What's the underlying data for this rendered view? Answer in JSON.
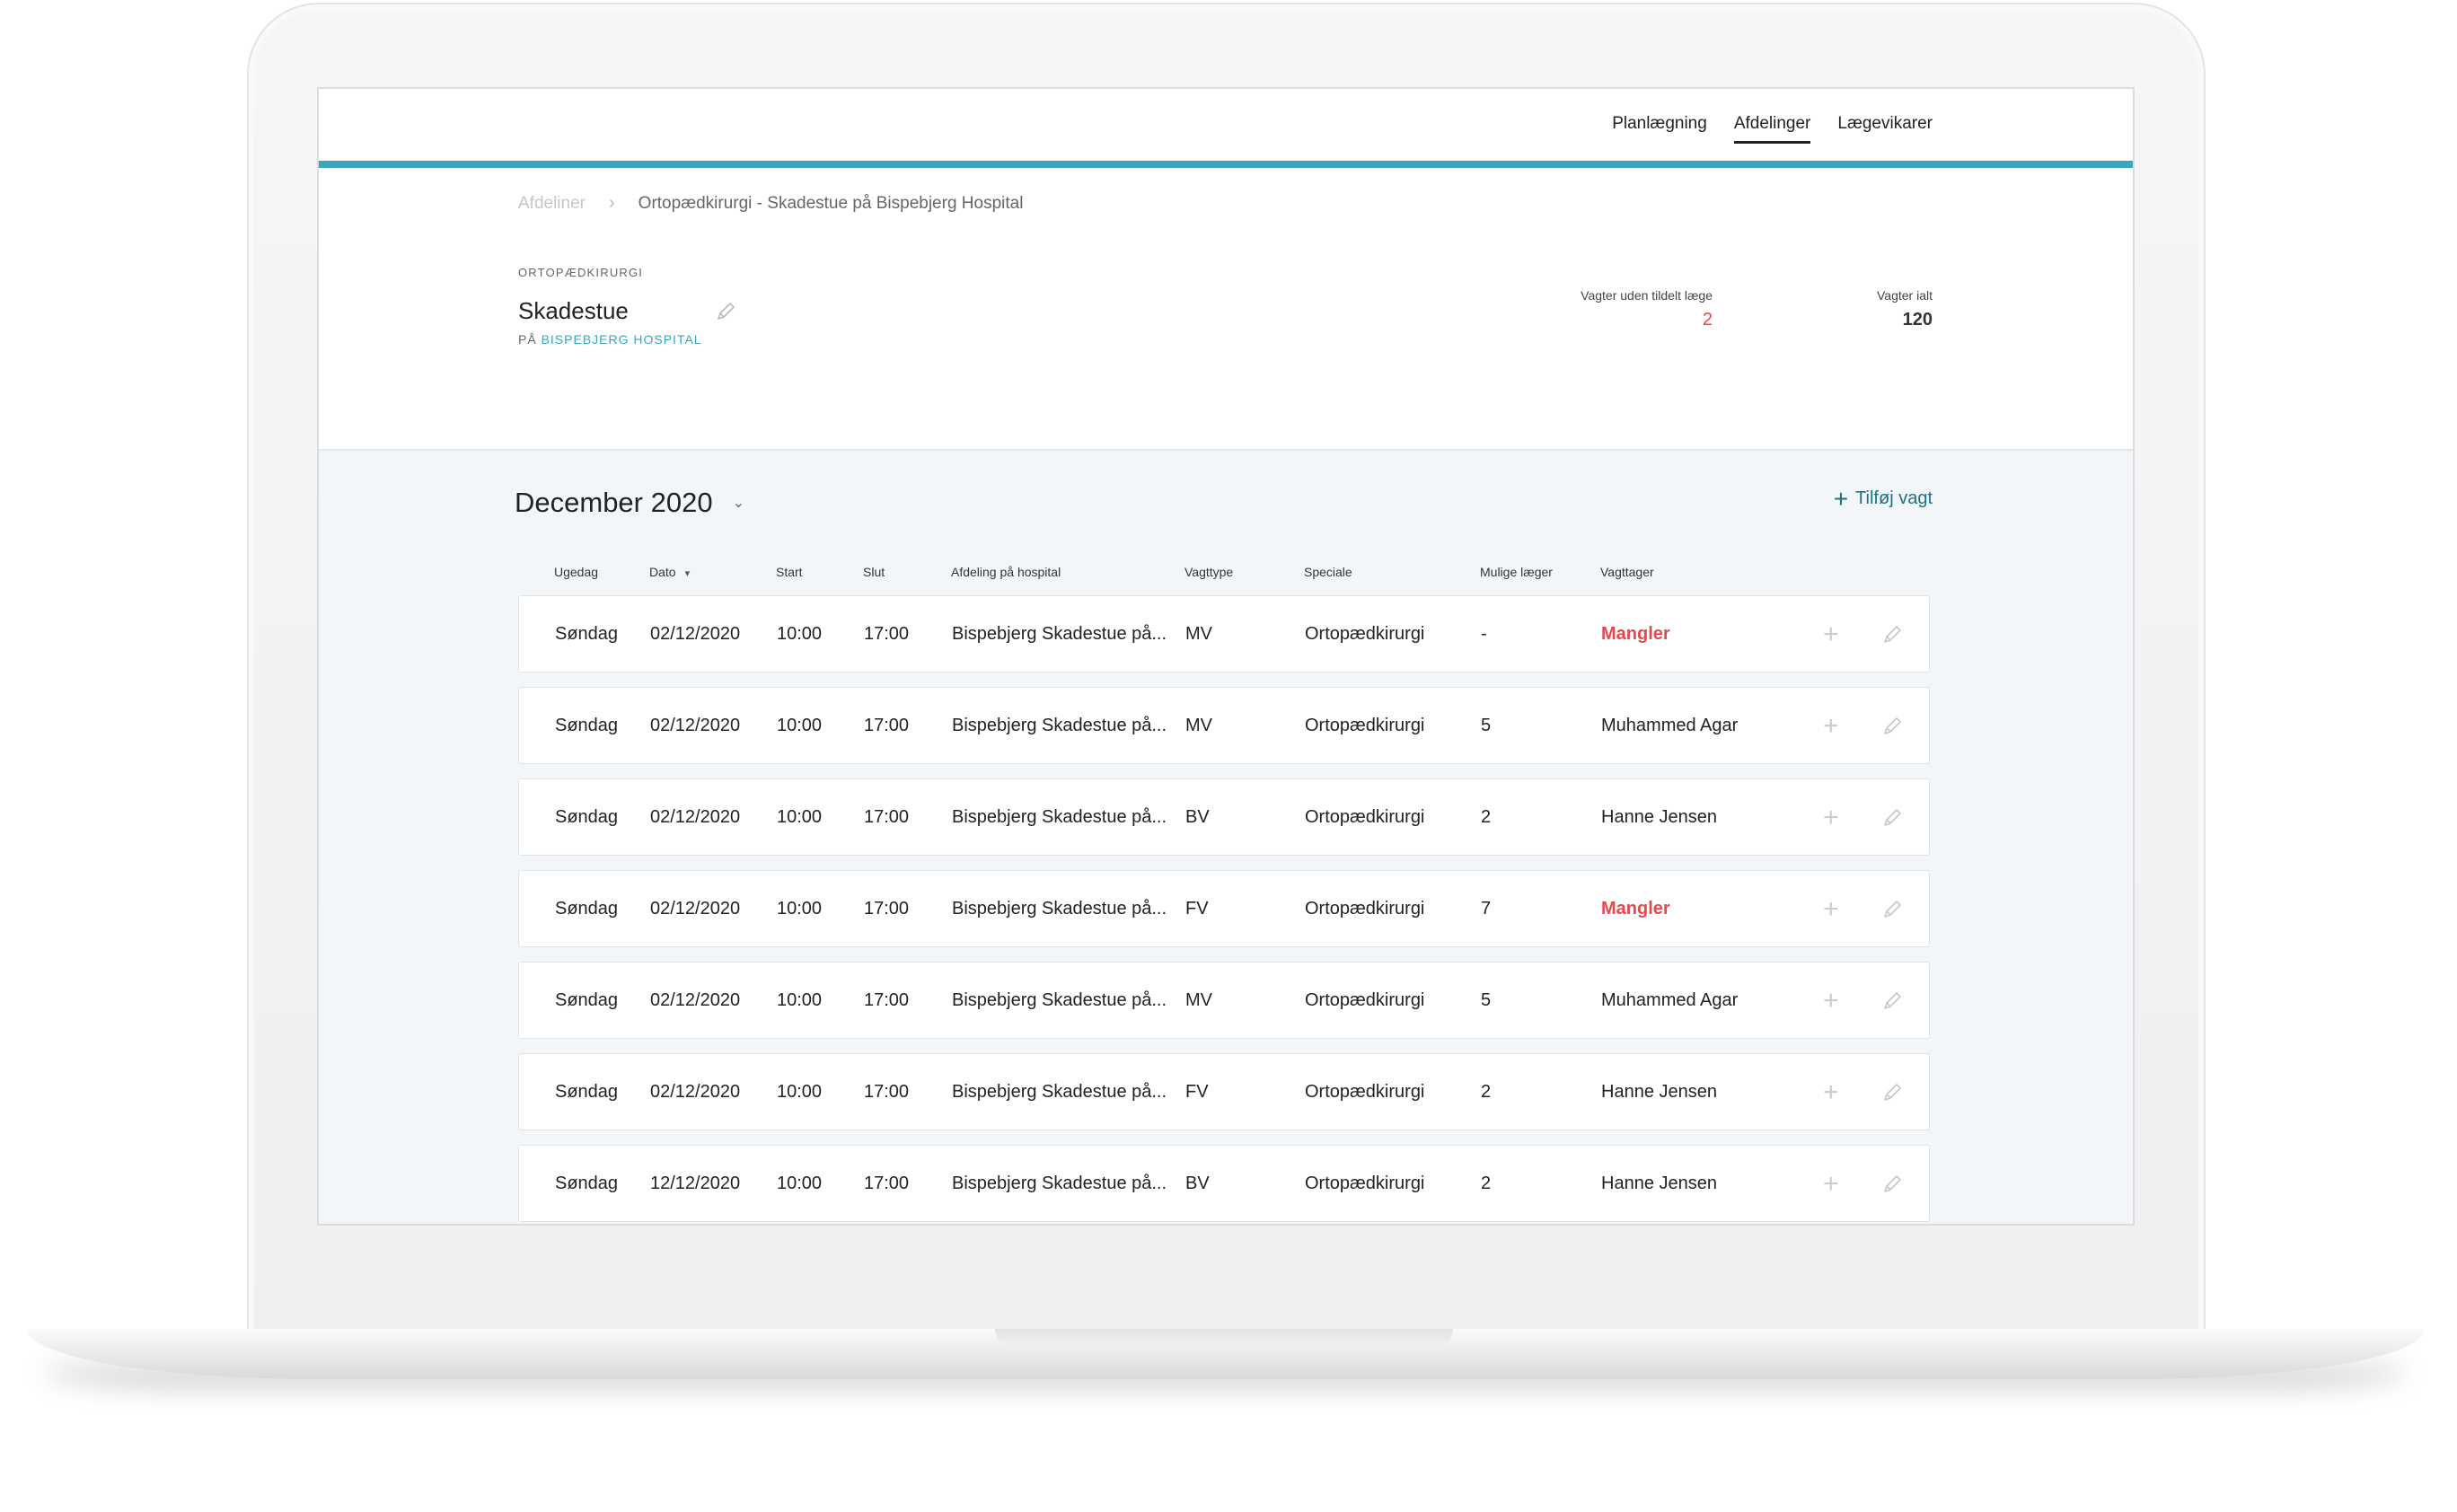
{
  "nav": {
    "items": [
      {
        "label": "Planlægning",
        "active": false
      },
      {
        "label": "Afdelinger",
        "active": true
      },
      {
        "label": "Lægevikarer",
        "active": false
      }
    ]
  },
  "breadcrumb": {
    "parent": "Afdeliner",
    "separator": "›",
    "current": "Ortopædkirurgi - Skadestue på Bispebjerg Hospital"
  },
  "department": {
    "category": "ORTOPÆDKIRURGI",
    "name": "Skadestue",
    "location_prefix": "PÅ",
    "location_link": "BISPEBJERG HOSPITAL"
  },
  "stats": {
    "unassigned_label": "Vagter uden tildelt læge",
    "unassigned_value": "2",
    "total_label": "Vagter ialt",
    "total_value": "120"
  },
  "schedule": {
    "month": "December 2020",
    "month_caret": "⌄",
    "add_label": "Tilføj vagt",
    "add_icon": "+",
    "columns": {
      "weekday": "Ugedag",
      "date": "Dato",
      "date_sort": "▾",
      "start": "Start",
      "end": "Slut",
      "department": "Afdeling på hospital",
      "shift_type": "Vagttype",
      "specialty": "Speciale",
      "possible_doctors": "Mulige læger",
      "taker": "Vagttager"
    },
    "rows": [
      {
        "weekday": "Søndag",
        "date": "02/12/2020",
        "start": "10:00",
        "end": "17:00",
        "department": "Bispebjerg Skadestue på...",
        "shift_type": "MV",
        "specialty": "Ortopædkirurgi",
        "possible": "-",
        "taker": "Mangler",
        "missing": true
      },
      {
        "weekday": "Søndag",
        "date": "02/12/2020",
        "start": "10:00",
        "end": "17:00",
        "department": "Bispebjerg Skadestue på...",
        "shift_type": "MV",
        "specialty": "Ortopædkirurgi",
        "possible": "5",
        "taker": "Muhammed Agar",
        "missing": false
      },
      {
        "weekday": "Søndag",
        "date": "02/12/2020",
        "start": "10:00",
        "end": "17:00",
        "department": "Bispebjerg Skadestue på...",
        "shift_type": "BV",
        "specialty": "Ortopædkirurgi",
        "possible": "2",
        "taker": "Hanne Jensen",
        "missing": false
      },
      {
        "weekday": "Søndag",
        "date": "02/12/2020",
        "start": "10:00",
        "end": "17:00",
        "department": "Bispebjerg Skadestue på...",
        "shift_type": "FV",
        "specialty": "Ortopædkirurgi",
        "possible": "7",
        "taker": "Mangler",
        "missing": true
      },
      {
        "weekday": "Søndag",
        "date": "02/12/2020",
        "start": "10:00",
        "end": "17:00",
        "department": "Bispebjerg Skadestue på...",
        "shift_type": "MV",
        "specialty": "Ortopædkirurgi",
        "possible": "5",
        "taker": "Muhammed Agar",
        "missing": false
      },
      {
        "weekday": "Søndag",
        "date": "02/12/2020",
        "start": "10:00",
        "end": "17:00",
        "department": "Bispebjerg Skadestue på...",
        "shift_type": "FV",
        "specialty": "Ortopædkirurgi",
        "possible": "2",
        "taker": "Hanne Jensen",
        "missing": false
      },
      {
        "weekday": "Søndag",
        "date": "12/12/2020",
        "start": "10:00",
        "end": "17:00",
        "department": "Bispebjerg Skadestue på...",
        "shift_type": "BV",
        "specialty": "Ortopædkirurgi",
        "possible": "2",
        "taker": "Hanne Jensen",
        "missing": false
      }
    ],
    "row_add_icon": "+"
  },
  "colors": {
    "accent": "#3aa6bd",
    "missing": "#e5484d",
    "link": "#1f6f86"
  }
}
